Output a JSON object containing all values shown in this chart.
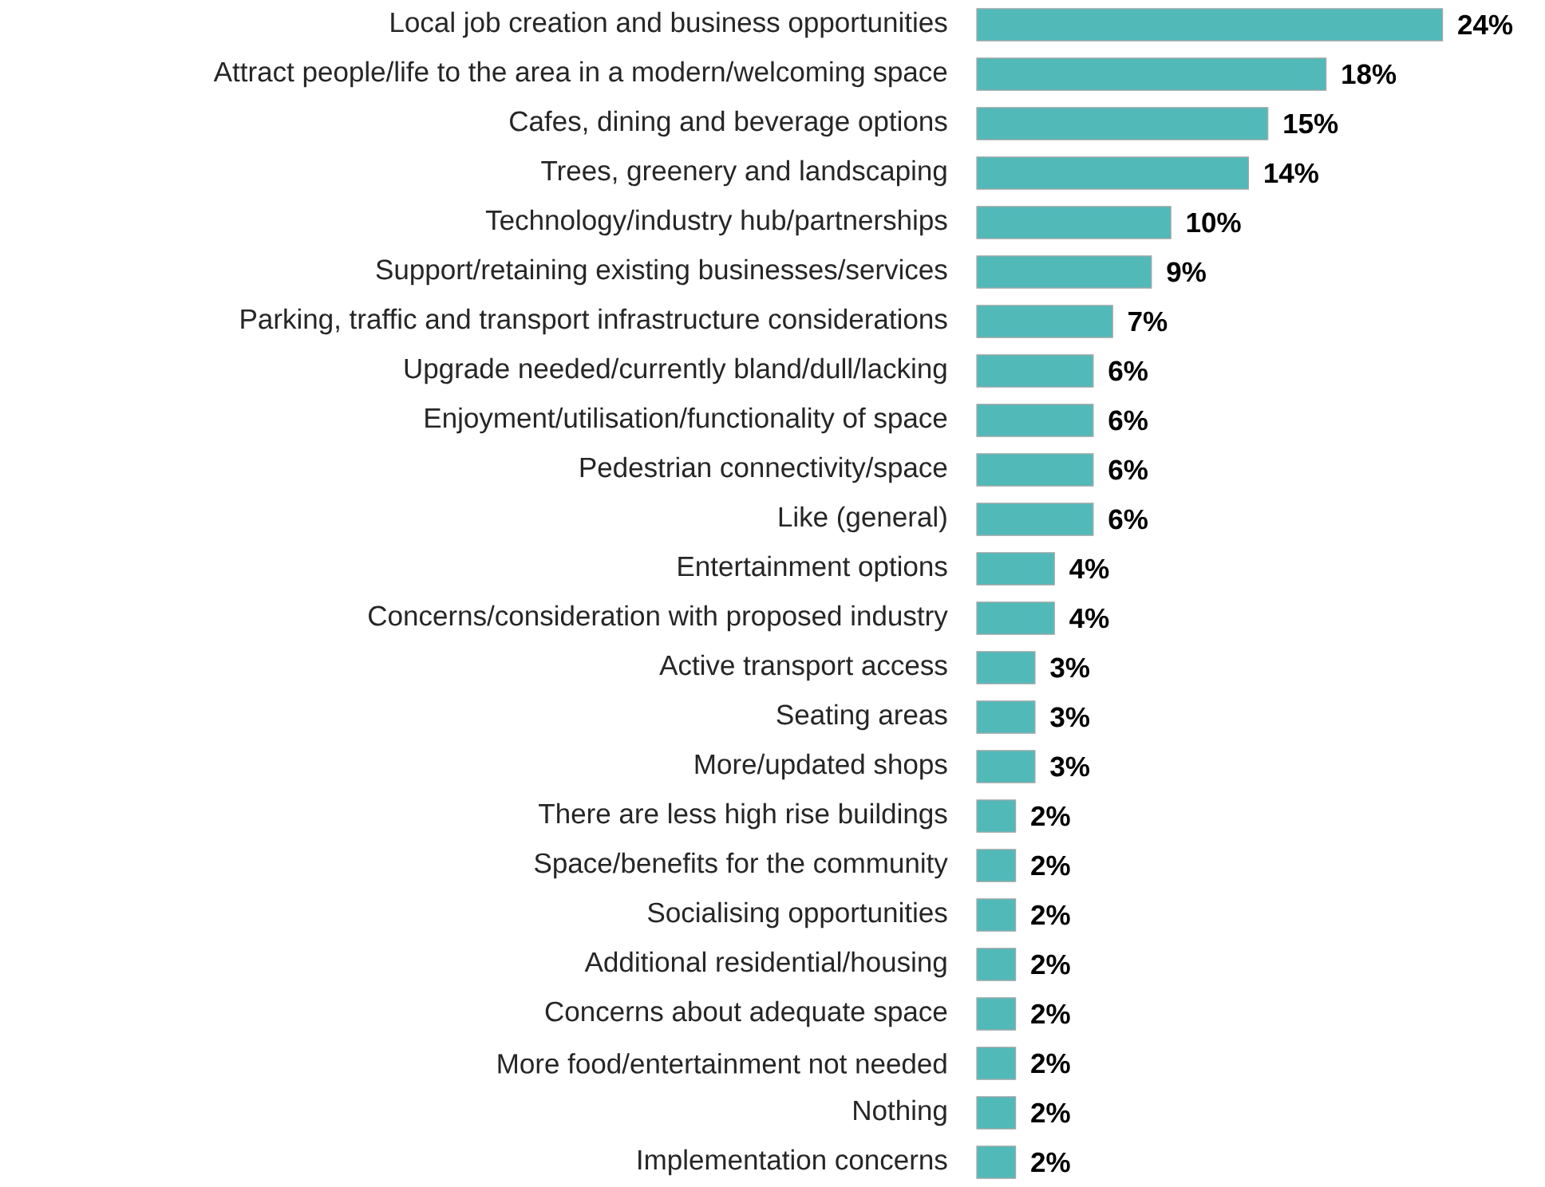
{
  "chart_data": {
    "type": "bar",
    "orientation": "horizontal",
    "color": "#52b9b9",
    "categories": [
      "Local job creation and business opportunities",
      "Attract people/life to the area in a modern/welcoming space",
      "Cafes, dining and beverage options",
      "Trees, greenery and landscaping",
      "Technology/industry hub/partnerships",
      "Support/retaining existing businesses/services",
      "Parking, traffic and transport infrastructure considerations",
      "Upgrade needed/currently bland/dull/lacking",
      "Enjoyment/utilisation/functionality of space",
      "Pedestrian connectivity/space",
      "Like (general)",
      "Entertainment options",
      "Concerns/consideration with proposed industry",
      "Active transport access",
      "Seating areas",
      "More/updated shops",
      "There are less high rise buildings",
      "Space/benefits for the community",
      "Socialising opportunities",
      "Additional residential/housing",
      "Concerns about adequate space",
      "More food/entertainment not needed",
      "Nothing",
      "Implementation concerns"
    ],
    "values": [
      24,
      18,
      15,
      14,
      10,
      9,
      7,
      6,
      6,
      6,
      6,
      4,
      4,
      3,
      3,
      3,
      2,
      2,
      2,
      2,
      2,
      2,
      2,
      2
    ],
    "value_labels": [
      "24%",
      "18%",
      "15%",
      "14%",
      "10%",
      "9%",
      "7%",
      "6%",
      "6%",
      "6%",
      "6%",
      "4%",
      "4%",
      "3%",
      "3%",
      "3%",
      "2%",
      "2%",
      "2%",
      "2%",
      "2%",
      "2%",
      "2%",
      "2%"
    ]
  }
}
